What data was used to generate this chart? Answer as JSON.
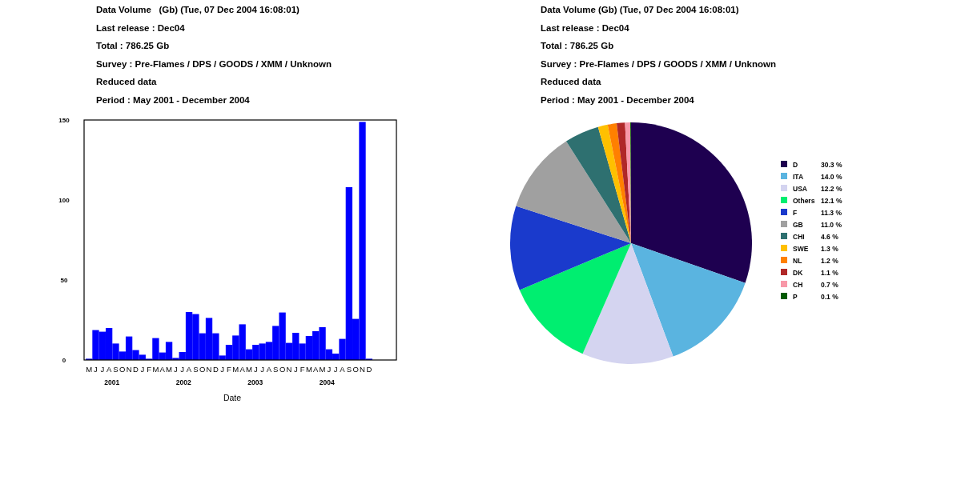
{
  "chart_data": [
    {
      "type": "bar",
      "title": "Data Volume   (Gb) (Tue, 07 Dec 2004 16:08:01)",
      "annotations": [
        "Last release : Dec04",
        "Total : 786.25 Gb",
        "Survey : Pre-Flames / DPS / GOODS / XMM / Unknown",
        "Reduced data",
        "Period : May 2001 - December 2004",
        "2001",
        "2002",
        "2003",
        "2004"
      ],
      "xlabel": "Date",
      "categories": [
        "M",
        "J",
        "J",
        "A",
        "S",
        "O",
        "N",
        "D",
        "J",
        "F",
        "M",
        "A",
        "M",
        "J",
        "J",
        "A",
        "S",
        "O",
        "N",
        "D",
        "J",
        "F",
        "M",
        "A",
        "M",
        "J",
        "J",
        "A",
        "S",
        "O",
        "N",
        "J",
        "F",
        "M",
        "A",
        "M",
        "J",
        "J",
        "A",
        "S",
        "O",
        "N",
        "D"
      ],
      "values": [
        0.8,
        18.7,
        17.7,
        20,
        10.3,
        5.3,
        14.7,
        6.2,
        3.3,
        0.8,
        13.7,
        4.7,
        11.3,
        1.3,
        5,
        30,
        28.7,
        16.7,
        26.3,
        16.7,
        2.8,
        9.5,
        15.3,
        22.3,
        6.7,
        9.5,
        10.3,
        11.3,
        21.3,
        29.7,
        10.7,
        17,
        10.3,
        15,
        18,
        20.5,
        6.7,
        4,
        13.2,
        108,
        25.7,
        148.8,
        0.8
      ],
      "color": "#0000ff",
      "ylim": [
        0,
        150
      ],
      "yticks": [
        0,
        50,
        100,
        150
      ]
    },
    {
      "type": "pie",
      "title": "Data Volume (Gb) (Tue, 07 Dec 2004 16:08:01)",
      "annotations": [
        "Last release : Dec04",
        "Total : 786.25 Gb",
        "Survey : Pre-Flames / DPS / GOODS / XMM / Unknown",
        "Reduced data",
        "Period : May 2001 - December 2004"
      ],
      "categories": [
        "D",
        "ITA",
        "USA",
        "Others",
        "F",
        "GB",
        "CHI",
        "SWE",
        "NL",
        "DK",
        "CH",
        "P"
      ],
      "values": [
        30.3,
        14.0,
        12.2,
        12.1,
        11.3,
        11.0,
        4.6,
        1.3,
        1.2,
        1.1,
        0.7,
        0.1
      ],
      "colors": [
        "#1e0050",
        "#5ab4e0",
        "#d4d4f0",
        "#00ee70",
        "#1a3acc",
        "#a0a0a0",
        "#2e7070",
        "#ffc000",
        "#ff8000",
        "#b02828",
        "#f898a8",
        "#005a00"
      ],
      "value_labels": [
        "30.3 %",
        "14.0 %",
        "12.2 %",
        "12.1 %",
        "11.3 %",
        "11.0 %",
        "4.6 %",
        "1.3 %",
        "1.2 %",
        "1.1 %",
        "0.7 %",
        "0.1 %"
      ],
      "legend": "right"
    }
  ]
}
